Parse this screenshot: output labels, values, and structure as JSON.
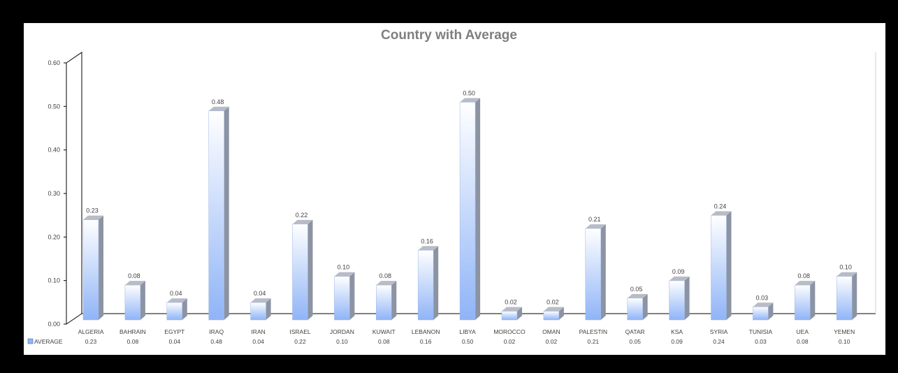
{
  "colors": {
    "bar_front_top": "#ffffff",
    "bar_front_bottom": "#8fb4f7",
    "bar_side": "#8c93a3",
    "bar_top": "#b8bcc6",
    "axis": "#000000",
    "legend_box": "#8fb4f7"
  },
  "chart_data": {
    "type": "bar",
    "title": "Country with Average",
    "categories": [
      "ALGERIA",
      "BAHRAIN",
      "EGYPT",
      "IRAQ",
      "IRAN",
      "ISRAEL",
      "JORDAN",
      "KUWAIT",
      "LEBANON",
      "LIBYA",
      "MOROCCO",
      "OMAN",
      "PALESTIN",
      "QATAR",
      "KSA",
      "SYRIA",
      "TUNISIA",
      "UEA",
      "YEMEN"
    ],
    "series": [
      {
        "name": "AVERAGE",
        "values": [
          0.23,
          0.08,
          0.04,
          0.48,
          0.04,
          0.22,
          0.1,
          0.08,
          0.16,
          0.5,
          0.02,
          0.02,
          0.21,
          0.05,
          0.09,
          0.24,
          0.03,
          0.08,
          0.1
        ]
      }
    ],
    "value_labels": [
      "0.23",
      "0.08",
      "0.04",
      "0.48",
      "0.04",
      "0.22",
      "0.10",
      "0.08",
      "0.16",
      "0.50",
      "0.02",
      "0.02",
      "0.21",
      "0.05",
      "0.09",
      "0.24",
      "0.03",
      "0.08",
      "0.10"
    ],
    "yticks": [
      "0.00",
      "0.10",
      "0.20",
      "0.30",
      "0.40",
      "0.50",
      "0.60"
    ],
    "ylim": [
      0,
      0.6
    ],
    "legend": "data table, left",
    "grid": false
  }
}
